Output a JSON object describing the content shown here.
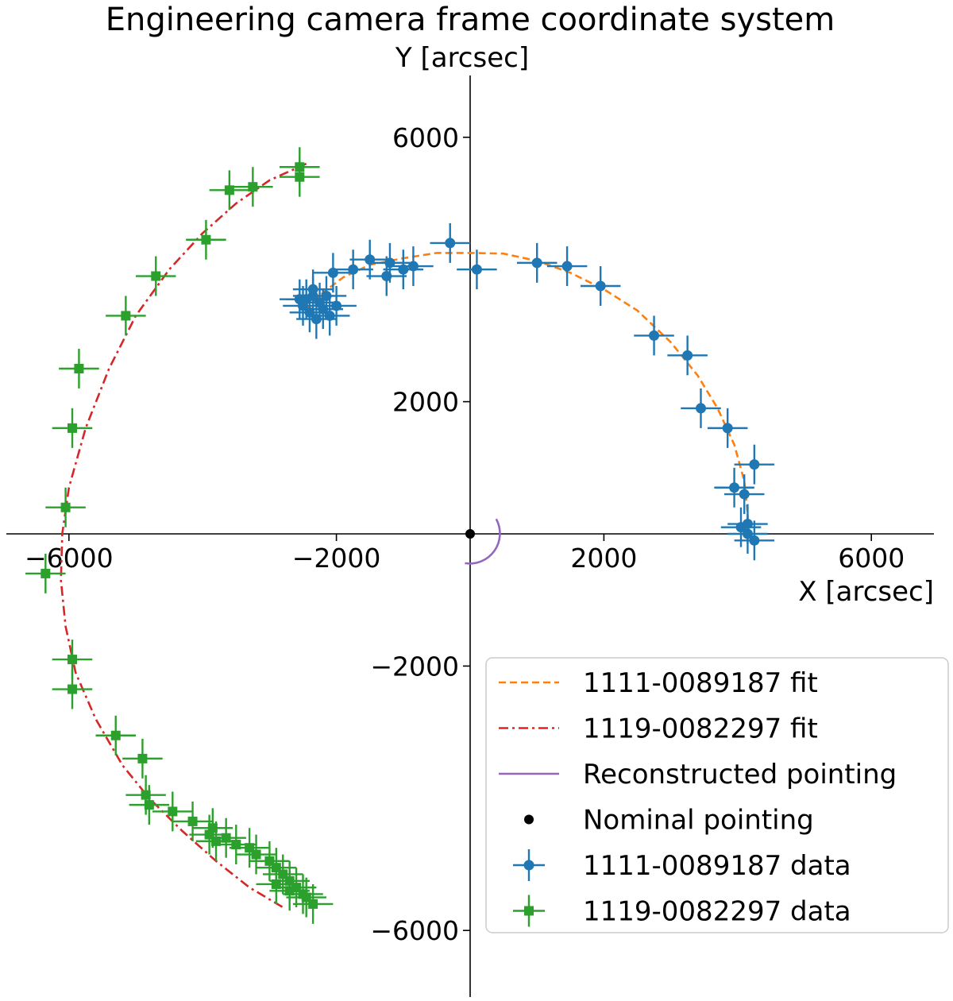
{
  "chart_data": {
    "type": "scatter",
    "title": "Engineering camera frame coordinate system",
    "xlabel": "X [arcsec]",
    "ylabel": "Y [arcsec]",
    "xlim": [
      -7000,
      7000
    ],
    "ylim": [
      -7000,
      7000
    ],
    "xticks": [
      -6000,
      -2000,
      2000,
      6000
    ],
    "yticks": [
      6000,
      2000,
      -2000,
      -6000
    ],
    "xtick_labels": [
      "−6000",
      "−2000",
      "2000",
      "6000"
    ],
    "ytick_labels": [
      "6000",
      "2000",
      "−2000",
      "−6000"
    ],
    "grid": false,
    "legend_position": "lower-right",
    "colors": {
      "blue": "#1f77b4",
      "orange": "#ff7f0e",
      "green": "#2ca02c",
      "red": "#d62728",
      "purple": "#9467bd",
      "black": "#000000"
    },
    "series": [
      {
        "name": "1111-0089187 fit",
        "kind": "line",
        "style": "dashed",
        "color": "#ff7f0e",
        "x": [
          -2450,
          -2200,
          -1900,
          -1500,
          -1000,
          -500,
          0,
          500,
          1000,
          1500,
          2000,
          2500,
          3000,
          3400,
          3700,
          3950,
          4100,
          4150,
          4150
        ],
        "y": [
          3380,
          3650,
          3880,
          4070,
          4170,
          4250,
          4250,
          4240,
          4130,
          3950,
          3700,
          3380,
          2900,
          2400,
          1900,
          1350,
          800,
          300,
          100
        ]
      },
      {
        "name": "1119-0082297 fit",
        "kind": "line",
        "style": "dashdot",
        "color": "#d62728",
        "x": [
          -2450,
          -3000,
          -3500,
          -4000,
          -4500,
          -5000,
          -5400,
          -5750,
          -6000,
          -6100,
          -6120,
          -6050,
          -5900,
          -5600,
          -5200,
          -4800,
          -4300,
          -3800,
          -3300,
          -2800
        ],
        "y": [
          5600,
          5350,
          5000,
          4550,
          4000,
          3300,
          2500,
          1600,
          700,
          0,
          -700,
          -1400,
          -2100,
          -2800,
          -3500,
          -4000,
          -4500,
          -4950,
          -5350,
          -5650
        ]
      },
      {
        "name": "Reconstructed pointing",
        "kind": "arc",
        "color": "#9467bd",
        "cx": 0,
        "cy": 0,
        "r": 450,
        "start_deg": -100,
        "end_deg": 30
      },
      {
        "name": "Nominal pointing",
        "kind": "point",
        "color": "#000000",
        "x": [
          0
        ],
        "y": [
          0
        ]
      },
      {
        "name": "1111-0089187 data",
        "kind": "errorbar",
        "marker": "circle",
        "color": "#1f77b4",
        "xerr": 300,
        "yerr": 300,
        "x": [
          -300,
          100,
          -850,
          -1000,
          -1250,
          -1750,
          -1200,
          -2050,
          -1500,
          1000,
          1450,
          1950,
          2750,
          3250,
          3450,
          3850,
          3950,
          4050,
          4250,
          4100,
          4150,
          4150,
          4250,
          -2500,
          -2450,
          -2400,
          -2350,
          -2300,
          -2250,
          -2200,
          -2150,
          -2100,
          -2350,
          -2550,
          -2000
        ],
        "y": [
          4400,
          4000,
          4050,
          4000,
          3900,
          4000,
          4100,
          3950,
          4150,
          4100,
          4050,
          3750,
          3000,
          2700,
          1900,
          1600,
          700,
          100,
          1050,
          600,
          150,
          0,
          -100,
          3450,
          3550,
          3350,
          3600,
          3250,
          3500,
          3400,
          3600,
          3300,
          3700,
          3550,
          3450
        ]
      },
      {
        "name": "1119-0082297 data",
        "kind": "errorbar",
        "marker": "square",
        "color": "#2ca02c",
        "xerr": 300,
        "yerr": 300,
        "x": [
          -2550,
          -2550,
          -3250,
          -3600,
          -3950,
          -4700,
          -5150,
          -5850,
          -5950,
          -6050,
          -6350,
          -5950,
          -5950,
          -5300,
          -4900,
          -4850,
          -4800,
          -4450,
          -4150,
          -3900,
          -3850,
          -3800,
          -3650,
          -3500,
          -3300,
          -3200,
          -3000,
          -2900,
          -2800,
          -2700,
          -2600,
          -2500,
          -2450,
          -2700,
          -2350,
          -2900
        ],
        "y": [
          5550,
          5400,
          5250,
          5200,
          4450,
          3900,
          3300,
          2500,
          1600,
          400,
          -600,
          -1900,
          -2350,
          -3050,
          -3400,
          -3950,
          -4100,
          -4200,
          -4350,
          -4550,
          -4450,
          -4650,
          -4600,
          -4700,
          -4750,
          -4850,
          -4950,
          -5050,
          -5150,
          -5250,
          -5350,
          -5450,
          -5500,
          -5400,
          -5600,
          -5300
        ]
      }
    ],
    "legend": [
      {
        "label": "1111-0089187 fit",
        "symbol": "dashed",
        "color": "#ff7f0e"
      },
      {
        "label": "1119-0082297 fit",
        "symbol": "dashdot",
        "color": "#d62728"
      },
      {
        "label": "Reconstructed pointing",
        "symbol": "line",
        "color": "#9467bd"
      },
      {
        "label": "Nominal pointing",
        "symbol": "dot",
        "color": "#000000"
      },
      {
        "label": "1111-0089187 data",
        "symbol": "errorbar-circle",
        "color": "#1f77b4"
      },
      {
        "label": "1119-0082297 data",
        "symbol": "errorbar-square",
        "color": "#2ca02c"
      }
    ]
  }
}
